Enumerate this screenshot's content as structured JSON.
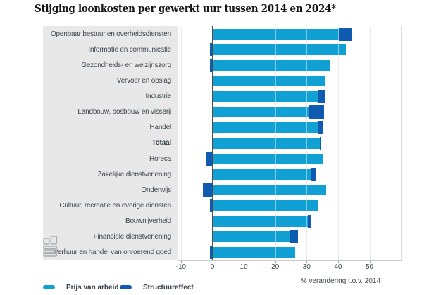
{
  "chart_data": {
    "type": "bar",
    "orientation": "horizontal",
    "title": "Stijging loonkosten per gewerkt uur tussen 2014 en 2024*",
    "categories": [
      "Openbaar bestuur en overheidsdiensten",
      "Informatie en communicatie",
      "Gezondheids- en welzijnszorg",
      "Vervoer en opslag",
      "Industrie",
      "Landbouw, bosbouw en visserij",
      "Handel",
      "Totaal",
      "Horeca",
      "Zakelijke dienstverlening",
      "Onderwijs",
      "Cultuur, recreatie en overige diensten",
      "Bouwnijverheid",
      "Financiële dienstverlening",
      "Verhuur en handel van onroerend goed"
    ],
    "bold_category": "Totaal",
    "series": [
      {
        "name": "Prijs van arbeid",
        "color": "#10a0d3",
        "values": [
          40.3,
          42.4,
          37.6,
          35.9,
          33.8,
          30.8,
          33.5,
          34.2,
          35.4,
          31.3,
          36.2,
          33.5,
          30.3,
          24.7,
          26.4
        ]
      },
      {
        "name": "Structuureffect",
        "color": "#0f5bb2",
        "values": [
          4.2,
          -0.8,
          -0.8,
          0,
          2.1,
          4.7,
          1.9,
          0.4,
          -1.9,
          1.8,
          -3.0,
          -0.8,
          0.9,
          2.5,
          -0.7
        ]
      }
    ],
    "xlabel": "% verandering t.o.v. 2014",
    "xlim": [
      -10,
      60
    ],
    "xticks": [
      -10,
      0,
      10,
      20,
      30,
      40,
      50
    ],
    "grid": true,
    "legend_position": "bottom"
  },
  "colors": {
    "panel_background": "#e8e8e8",
    "gridline": "#dcdcdc",
    "zero_line": "#4d4d4d",
    "text": "#3a4750",
    "title": "#161616",
    "logo_gray": "#a8adb2"
  }
}
